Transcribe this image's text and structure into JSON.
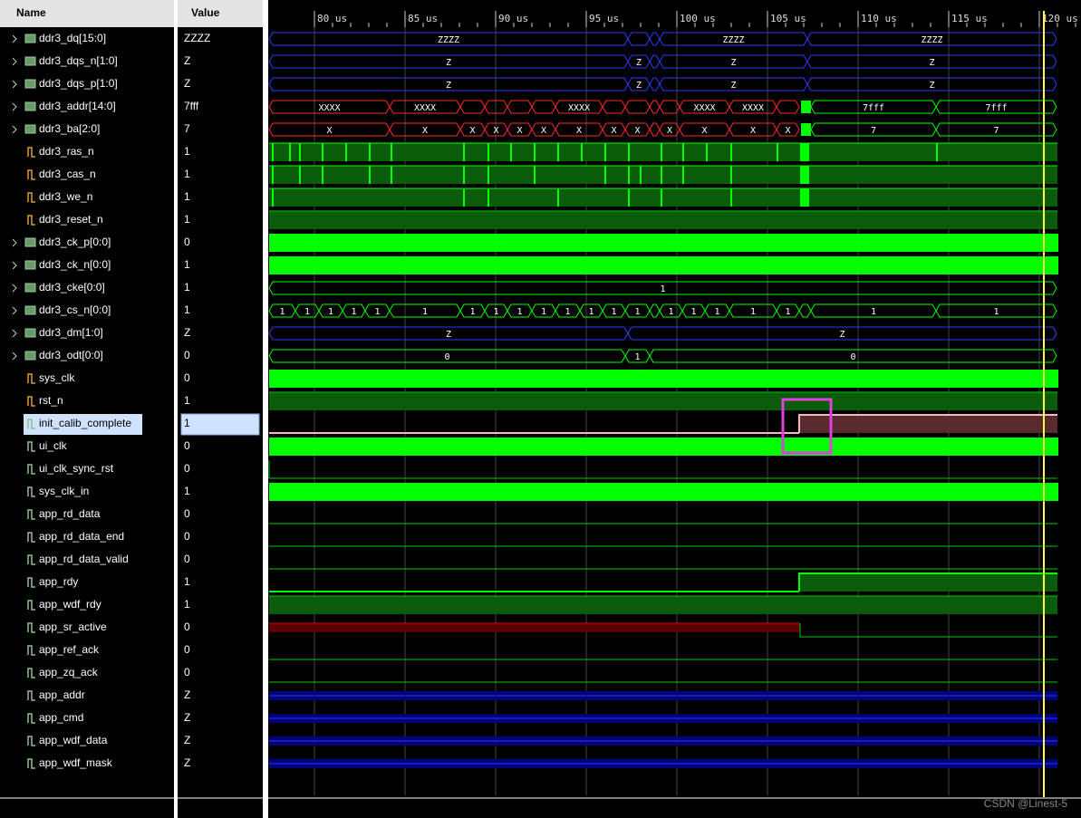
{
  "header": {
    "name": "Name",
    "value": "Value"
  },
  "time_axis": [
    "80 us",
    "85 us",
    "90 us",
    "95 us",
    "100 us",
    "105 us",
    "110 us",
    "115 us",
    "120 us"
  ],
  "signals": [
    {
      "name": "ddr3_dq[15:0]",
      "value": "ZZZZ",
      "labels": [
        "ZZZZ",
        "ZZZZ",
        "ZZZZ"
      ]
    },
    {
      "name": "ddr3_dqs_n[1:0]",
      "value": "Z",
      "labels": [
        "Z",
        "Z",
        "Z",
        "Z"
      ]
    },
    {
      "name": "ddr3_dqs_p[1:0]",
      "value": "Z",
      "labels": [
        "Z",
        "Z",
        "Z",
        "Z"
      ]
    },
    {
      "name": "ddr3_addr[14:0]",
      "value": "7fff",
      "labels": [
        "XXXX",
        "XXXX",
        "XXXX",
        "XXXX",
        "XXXX",
        "7fff",
        "7fff"
      ]
    },
    {
      "name": "ddr3_ba[2:0]",
      "value": "7",
      "labels": [
        "X",
        "X",
        "X",
        "X",
        "X",
        "X",
        "X",
        "X",
        "X",
        "X",
        "X",
        "X",
        "X",
        "7",
        "7"
      ]
    },
    {
      "name": "ddr3_ras_n",
      "value": "1"
    },
    {
      "name": "ddr3_cas_n",
      "value": "1"
    },
    {
      "name": "ddr3_we_n",
      "value": "1"
    },
    {
      "name": "ddr3_reset_n",
      "value": "1"
    },
    {
      "name": "ddr3_ck_p[0:0]",
      "value": "0"
    },
    {
      "name": "ddr3_ck_n[0:0]",
      "value": "1"
    },
    {
      "name": "ddr3_cke[0:0]",
      "value": "1",
      "labels": [
        "1"
      ]
    },
    {
      "name": "ddr3_cs_n[0:0]",
      "value": "1",
      "labels": [
        "1",
        "1",
        "1",
        "1",
        "1",
        "1",
        "1",
        "1",
        "1",
        "1",
        "1",
        "1",
        "1",
        "1",
        "1",
        "1",
        "1",
        "1",
        "1",
        "1",
        "1"
      ]
    },
    {
      "name": "ddr3_dm[1:0]",
      "value": "Z",
      "labels": [
        "Z",
        "Z"
      ]
    },
    {
      "name": "ddr3_odt[0:0]",
      "value": "0",
      "labels": [
        "0",
        "1",
        "0"
      ]
    },
    {
      "name": "sys_clk",
      "value": "0"
    },
    {
      "name": "rst_n",
      "value": "1"
    },
    {
      "name": "init_calib_complete",
      "value": "1"
    },
    {
      "name": "ui_clk",
      "value": "0"
    },
    {
      "name": "ui_clk_sync_rst",
      "value": "0"
    },
    {
      "name": "sys_clk_in",
      "value": "1"
    },
    {
      "name": "app_rd_data",
      "value": "0"
    },
    {
      "name": "app_rd_data_end",
      "value": "0"
    },
    {
      "name": "app_rd_data_valid",
      "value": "0"
    },
    {
      "name": "app_rdy",
      "value": "1"
    },
    {
      "name": "app_wdf_rdy",
      "value": "1"
    },
    {
      "name": "app_sr_active",
      "value": "0"
    },
    {
      "name": "app_ref_ack",
      "value": "0"
    },
    {
      "name": "app_zq_ack",
      "value": "0"
    },
    {
      "name": "app_addr",
      "value": "Z"
    },
    {
      "name": "app_cmd",
      "value": "Z"
    },
    {
      "name": "app_wdf_data",
      "value": "Z"
    },
    {
      "name": "app_wdf_mask",
      "value": "Z"
    }
  ],
  "watermark": "CSDN @Linest-5"
}
